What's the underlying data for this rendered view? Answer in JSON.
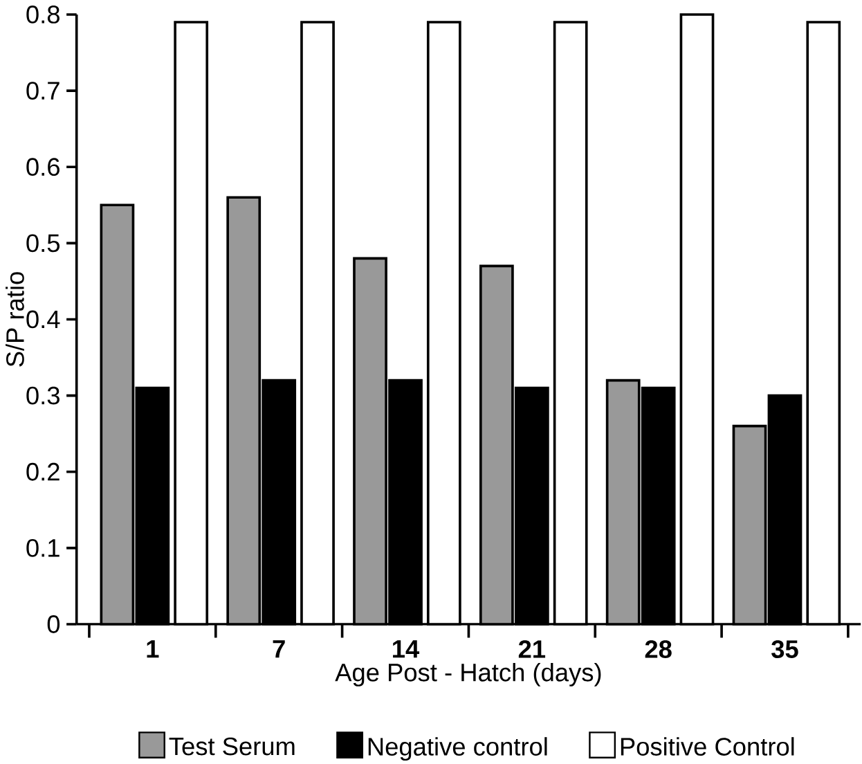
{
  "chart_data": {
    "type": "bar",
    "xlabel": "Age Post - Hatch (days)",
    "ylabel": "S/P ratio",
    "categories": [
      "1",
      "7",
      "14",
      "21",
      "28",
      "35"
    ],
    "series": [
      {
        "name": "Test Serum",
        "color": "#999999",
        "values": [
          0.55,
          0.56,
          0.48,
          0.47,
          0.32,
          0.26
        ]
      },
      {
        "name": "Negative control",
        "color": "#000000",
        "values": [
          0.31,
          0.32,
          0.32,
          0.31,
          0.31,
          0.3
        ]
      },
      {
        "name": "Positive Control",
        "color": "#ffffff",
        "values": [
          0.79,
          0.79,
          0.79,
          0.79,
          0.8,
          0.79
        ]
      }
    ],
    "ylim": [
      0,
      0.8
    ],
    "yticks": [
      0,
      0.1,
      0.2,
      0.3,
      0.4,
      0.5,
      0.6,
      0.7,
      0.8
    ],
    "legend": "bottom",
    "grid": false
  }
}
